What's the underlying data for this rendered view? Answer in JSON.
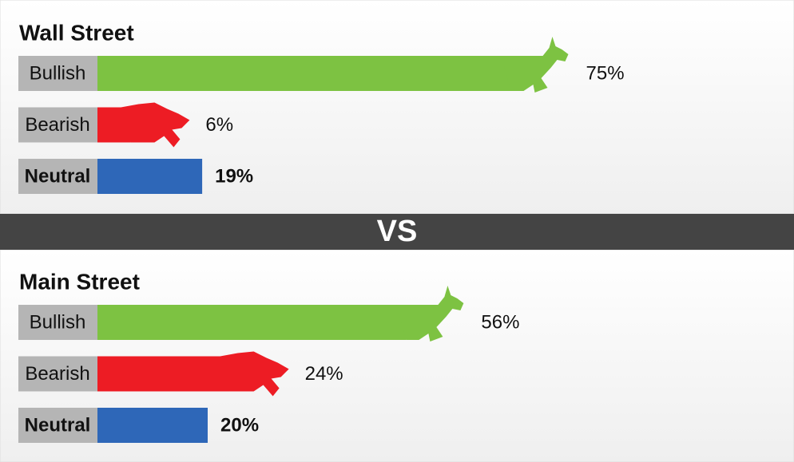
{
  "chart_data": [
    {
      "type": "bar",
      "title": "Wall Street",
      "categories": [
        "Bullish",
        "Bearish",
        "Neutral"
      ],
      "values": [
        75,
        6,
        19
      ],
      "value_labels": [
        "75%",
        "6%",
        "19%"
      ],
      "colors": [
        "#7dc242",
        "#ed1c24",
        "#2e67b8"
      ]
    },
    {
      "type": "bar",
      "title": "Main Street",
      "categories": [
        "Bullish",
        "Bearish",
        "Neutral"
      ],
      "values": [
        56,
        24,
        20
      ],
      "value_labels": [
        "56%",
        "24%",
        "20%"
      ],
      "colors": [
        "#7dc242",
        "#ed1c24",
        "#2e67b8"
      ]
    }
  ],
  "divider": "VS"
}
